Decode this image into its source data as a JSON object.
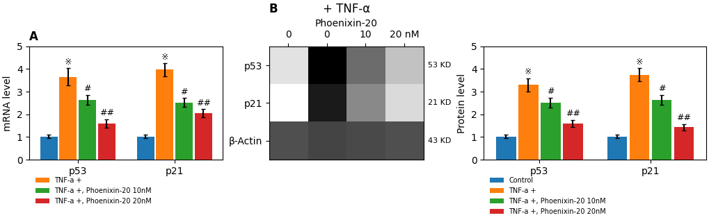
{
  "chart_data": [
    {
      "type": "bar",
      "title": "A",
      "ylabel": "mRNA level",
      "categories": [
        "p53",
        "p21"
      ],
      "ylim": [
        0,
        5
      ],
      "yticks": [
        0,
        1,
        2,
        3,
        4,
        5
      ],
      "legend": "upper left",
      "series": [
        {
          "values": [
            1.02,
            1.02
          ],
          "errors": [
            0.08,
            0.08
          ]
        },
        {
          "name": "TNF-a +",
          "values": [
            3.65,
            3.97
          ],
          "errors": [
            0.38,
            0.28
          ],
          "annotations": [
            "※",
            "※"
          ]
        },
        {
          "name": "TNF-a +, Phoenixin-20 10nM",
          "values": [
            2.63,
            2.52
          ],
          "errors": [
            0.22,
            0.2
          ],
          "annotations": [
            "#",
            "#"
          ]
        },
        {
          "name": "TNF-a +, Phoenixin-20 20nM",
          "values": [
            1.6,
            2.05
          ],
          "errors": [
            0.18,
            0.18
          ],
          "annotations": [
            "##",
            "##"
          ]
        }
      ]
    },
    {
      "type": "heatmap",
      "title": "B",
      "subtitle": "+ TNF-α",
      "xlabel": "Phoenixin-20",
      "categories": [
        "0",
        "0",
        "10",
        "20 nM"
      ],
      "rows": [
        "p53",
        "p21",
        "β-Actin"
      ],
      "cells": [
        [
          0.35,
          0.88,
          0.65,
          0.45
        ],
        [
          0.22,
          0.82,
          0.58,
          0.38
        ],
        [
          0.72,
          0.74,
          0.73,
          0.72
        ]
      ],
      "annotations": [
        "53 KD",
        "21 KD",
        "43 KD"
      ]
    },
    {
      "type": "bar",
      "ylabel": "Protein level",
      "categories": [
        "p53",
        "p21"
      ],
      "ylim": [
        0,
        5
      ],
      "yticks": [
        0,
        1,
        2,
        3,
        4,
        5
      ],
      "legend": "upper left",
      "series": [
        {
          "name": "Control",
          "values": [
            1.02,
            1.02
          ],
          "errors": [
            0.08,
            0.08
          ]
        },
        {
          "name": "TNF-a +",
          "values": [
            3.3,
            3.75
          ],
          "errors": [
            0.3,
            0.28
          ],
          "annotations": [
            "※",
            "※"
          ]
        },
        {
          "name": "TNF-a +, Phoenixin-20 10nM",
          "values": [
            2.52,
            2.63
          ],
          "errors": [
            0.22,
            0.22
          ],
          "annotations": [
            "#",
            "#"
          ]
        },
        {
          "name": "TNF-a +, Phoenixin-20 20nM",
          "values": [
            1.6,
            1.43
          ],
          "errors": [
            0.15,
            0.15
          ],
          "annotations": [
            "##",
            "##"
          ]
        }
      ]
    }
  ]
}
